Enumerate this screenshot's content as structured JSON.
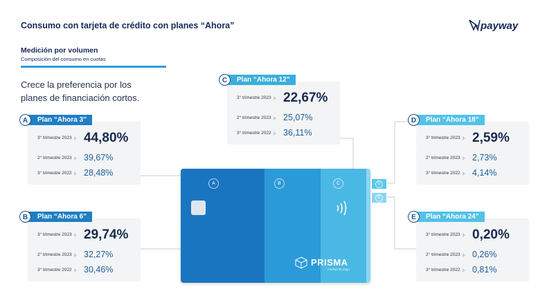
{
  "header": {
    "title": "Consumo con tarjeta de crédito con planes “Ahora”",
    "logo": "payway"
  },
  "section": {
    "title": "Medición por volumen",
    "subtitle": "Composición del consumo en cuotas"
  },
  "headline": [
    "Crece la preferencia por los",
    "planes de financiación cortos."
  ],
  "plans": [
    {
      "letter": "A",
      "name": "Plan “Ahora 3”",
      "rows": [
        {
          "period": "3° trimestre 2023",
          "value": "44,80%"
        },
        {
          "period": "2° trimestre 2023",
          "value": "39,67%"
        },
        {
          "period": "3° trimestre 2022",
          "value": "28,48%"
        }
      ]
    },
    {
      "letter": "B",
      "name": "Plan “Ahora 6”",
      "rows": [
        {
          "period": "3° trimestre 2023",
          "value": "29,74%"
        },
        {
          "period": "2° trimestre 2023",
          "value": "32,27%"
        },
        {
          "period": "3° trimestre 2022",
          "value": "30,46%"
        }
      ]
    },
    {
      "letter": "C",
      "name": "Plan “Ahora 12”",
      "rows": [
        {
          "period": "3° trimestre 2023",
          "value": "22,67%"
        },
        {
          "period": "2° trimestre 2023",
          "value": "25,07%"
        },
        {
          "period": "3° trimestre 2022",
          "value": "36,11%"
        }
      ]
    },
    {
      "letter": "D",
      "name": "Plan “Ahora 18”",
      "rows": [
        {
          "period": "3° trimestre 2023",
          "value": "2,59%"
        },
        {
          "period": "2° trimestre 2023",
          "value": "2,73%"
        },
        {
          "period": "3° trimestre 2022",
          "value": "4,14%"
        }
      ]
    },
    {
      "letter": "E",
      "name": "Plan “Ahora 24”",
      "rows": [
        {
          "period": "3° trimestre 2023",
          "value": "0,20%"
        },
        {
          "period": "2° trimestre 2023",
          "value": "0,26%"
        },
        {
          "period": "3° trimestre 2022",
          "value": "0,81%"
        }
      ]
    }
  ],
  "card": {
    "letters": [
      "A",
      "B",
      "C"
    ],
    "tabs": [
      "D",
      "E"
    ],
    "brand": "PRISMA",
    "tagline": "medios de pago"
  }
}
